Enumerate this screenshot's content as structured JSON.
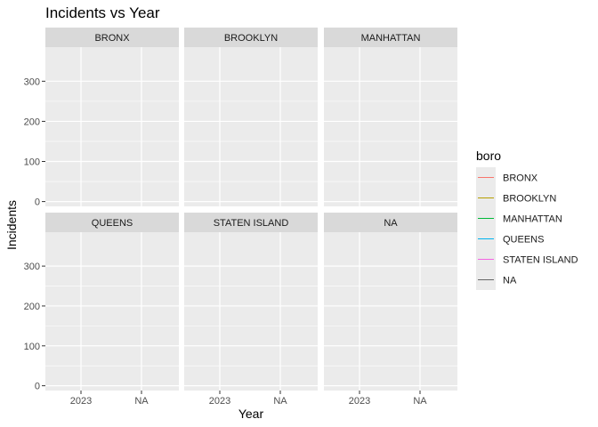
{
  "chart_data": {
    "type": "line",
    "title": "Incidents vs Year",
    "xlabel": "Year",
    "ylabel": "Incidents",
    "x_categories": [
      "2023",
      "NA"
    ],
    "ylim": [
      -12,
      385
    ],
    "yticks": [
      0,
      100,
      200,
      300
    ],
    "facet_var": "boro",
    "facets": [
      "BRONX",
      "BROOKLYN",
      "MANHATTAN",
      "QUEENS",
      "STATEN ISLAND",
      "NA"
    ],
    "facet_layout": {
      "rows": 2,
      "cols": 3
    },
    "series": [
      {
        "name": "BRONX",
        "color": "#F8766D",
        "values": []
      },
      {
        "name": "BROOKLYN",
        "color": "#B79F00",
        "values": []
      },
      {
        "name": "MANHATTAN",
        "color": "#00BA38",
        "values": []
      },
      {
        "name": "QUEENS",
        "color": "#00B4EF",
        "values": []
      },
      {
        "name": "STATEN ISLAND",
        "color": "#F564E3",
        "values": []
      },
      {
        "name": "NA",
        "color": "#666666",
        "values": []
      }
    ],
    "legend": {
      "title": "boro",
      "placement": "right"
    },
    "grid": true,
    "theme": {
      "panel_bg": "#EBEBEB",
      "strip_bg": "#D9D9D9",
      "grid_color": "#FFFFFF"
    }
  }
}
